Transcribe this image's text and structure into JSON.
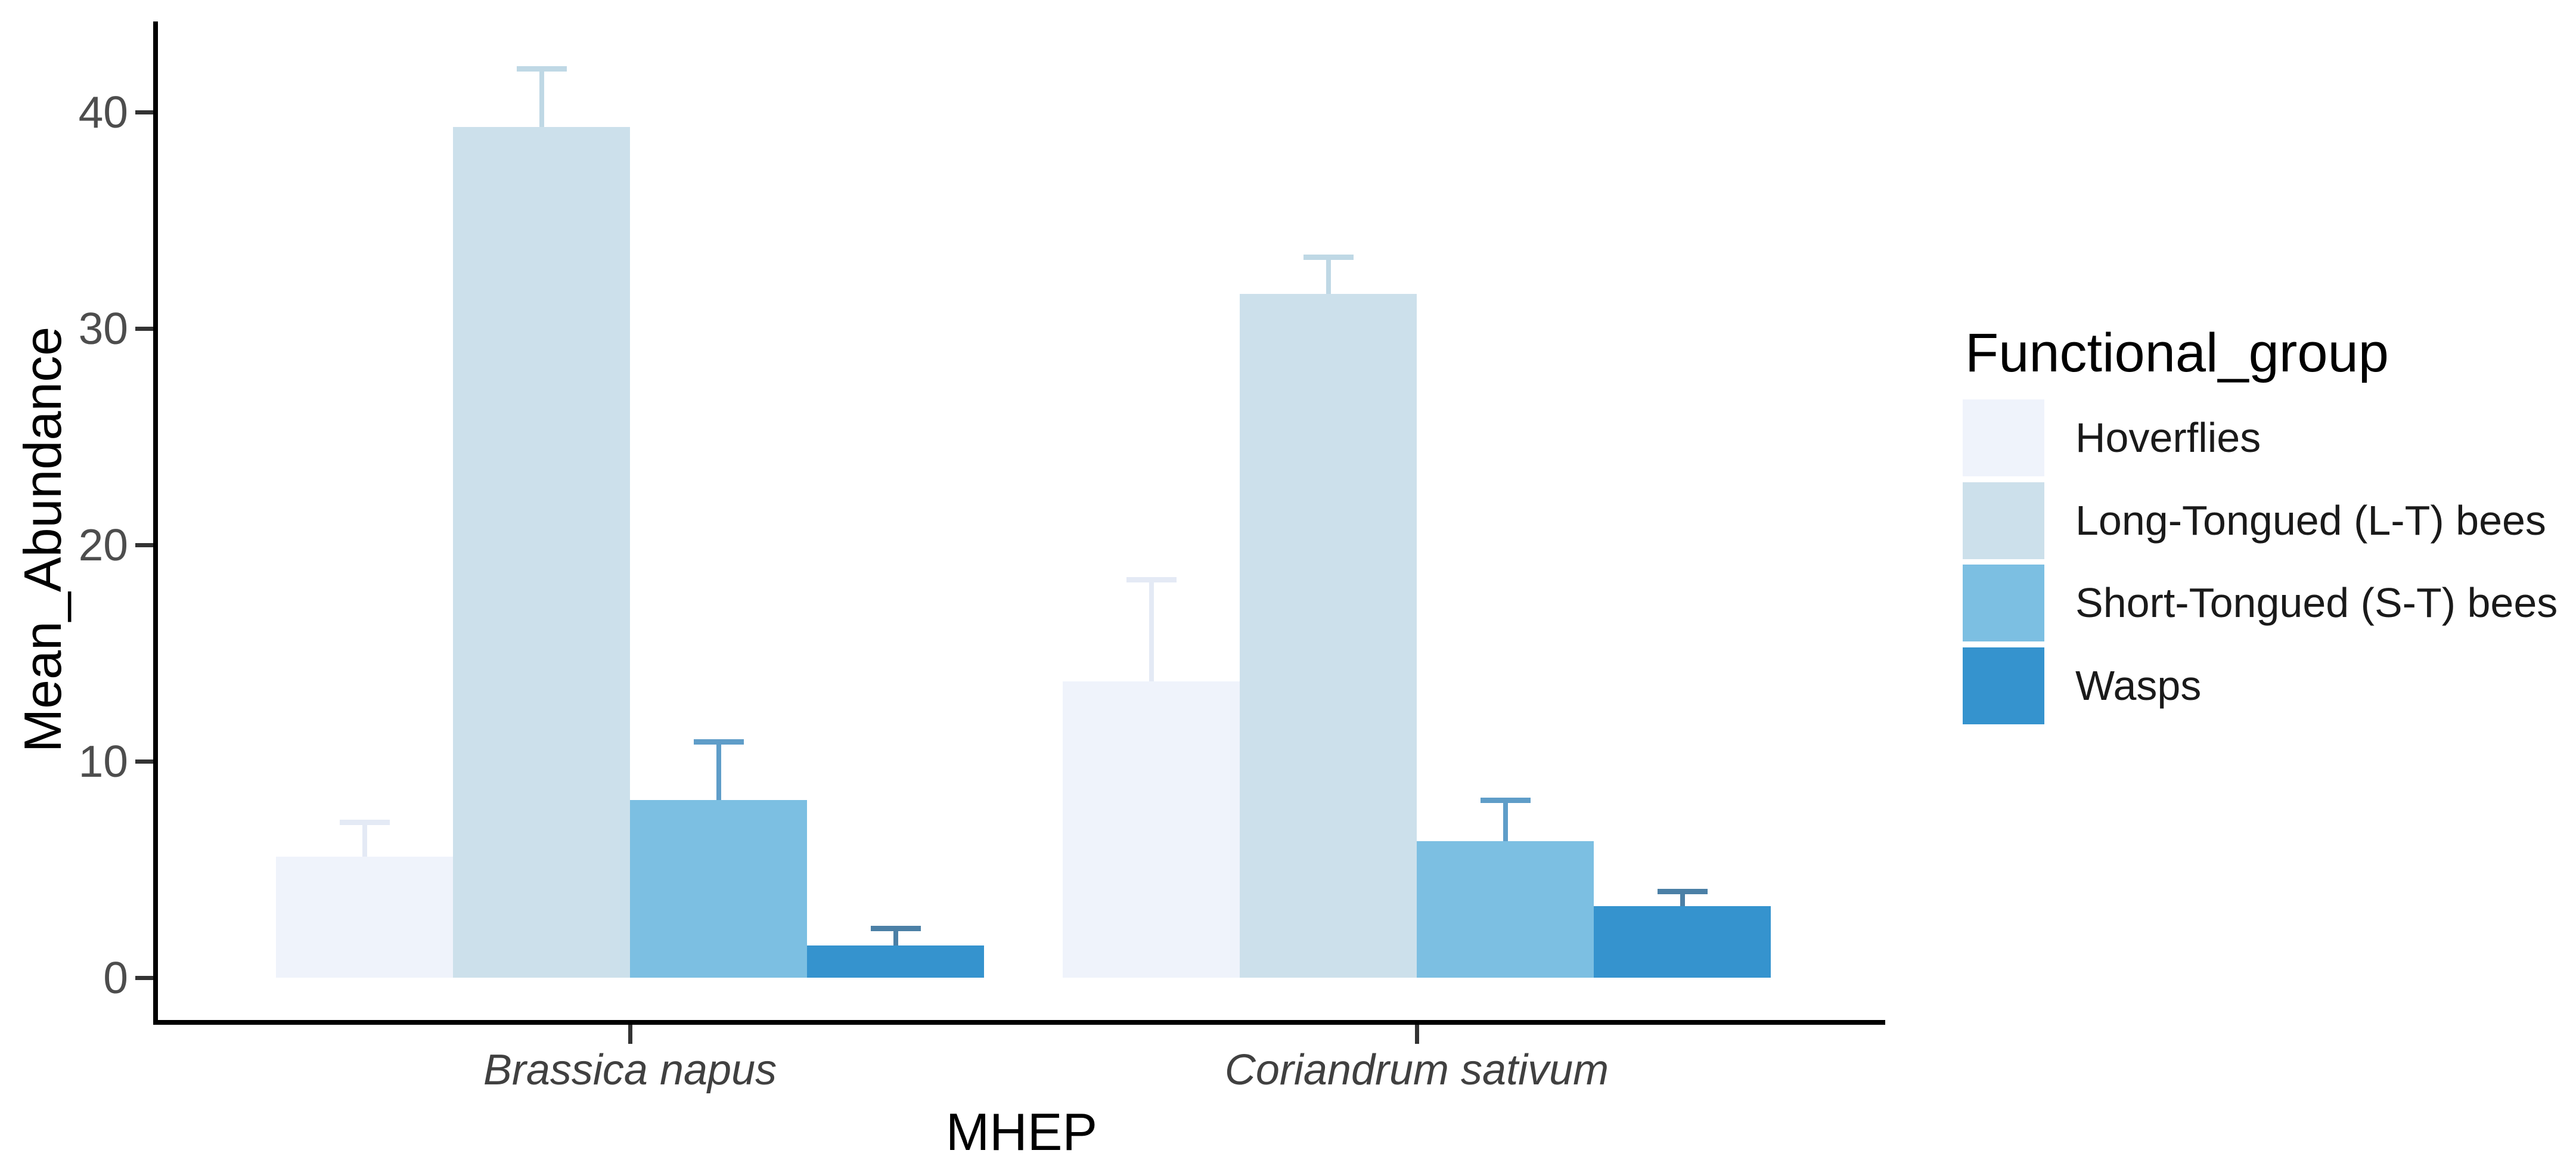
{
  "figure": {
    "x_axis_title": "MHEP",
    "y_axis_title": "Mean_Abundance"
  },
  "legend": {
    "title": "Functional_group",
    "items": [
      {
        "label": "Hoverflies",
        "fill": "#EFF3FB"
      },
      {
        "label": "Long-Tongued (L-T) bees",
        "fill": "#CCE0EB"
      },
      {
        "label": "Short-Tongued (S-T) bees",
        "fill": "#7CBFE2"
      },
      {
        "label": "Wasps",
        "fill": "#3593CE"
      }
    ]
  },
  "chart_data": {
    "type": "bar",
    "grouped": true,
    "title": "",
    "xlabel": "MHEP",
    "ylabel": "Mean_Abundance",
    "categories": [
      "Brassica napus",
      "Coriandrum sativum"
    ],
    "yticks": [
      0,
      10,
      20,
      30,
      40
    ],
    "ylim": [
      0,
      44.2
    ],
    "grid": false,
    "legend_position": "right",
    "legend_title": "Functional_group",
    "error_bars": "upper whisker with cap, per-group color",
    "series": [
      {
        "name": "Hoverflies",
        "fill": "#EFF3FB",
        "error_color": "#E4EAF5",
        "values": [
          5.6,
          13.7
        ],
        "error_upper": [
          7.2,
          18.4
        ]
      },
      {
        "name": "Long-Tongued (L-T) bees",
        "fill": "#CCE0EB",
        "error_color": "#BFD8E5",
        "values": [
          39.3,
          31.6
        ],
        "error_upper": [
          42.0,
          33.3
        ]
      },
      {
        "name": "Short-Tongued (S-T) bees",
        "fill": "#7CBFE2",
        "error_color": "#5F9DC8",
        "values": [
          8.2,
          6.3
        ],
        "error_upper": [
          10.9,
          8.2
        ]
      },
      {
        "name": "Wasps",
        "fill": "#3593CE",
        "error_color": "#4B80A6",
        "values": [
          1.5,
          3.3
        ],
        "error_upper": [
          2.3,
          4.0
        ]
      }
    ],
    "axis_color": "#000000",
    "tick_label_color": "#4D4D4D"
  }
}
